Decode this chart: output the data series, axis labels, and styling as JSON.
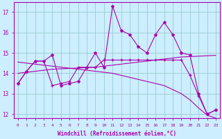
{
  "xlabel": "Windchill (Refroidissement éolien,°C)",
  "bg_color": "#cceeff",
  "line_color": "#aa00aa",
  "grid_color": "#99cccc",
  "x_hours": [
    0,
    1,
    2,
    3,
    4,
    5,
    6,
    7,
    8,
    9,
    10,
    11,
    12,
    13,
    14,
    15,
    16,
    17,
    18,
    19,
    20,
    21,
    22,
    23
  ],
  "series1": [
    13.5,
    14.1,
    14.6,
    14.6,
    14.9,
    13.4,
    13.5,
    13.6,
    14.3,
    15.0,
    14.3,
    17.3,
    16.1,
    15.9,
    15.3,
    15.0,
    15.9,
    16.5,
    15.9,
    15.0,
    14.9,
    13.0,
    12.0,
    12.2
  ],
  "series2": [
    13.5,
    14.1,
    14.6,
    14.6,
    13.4,
    13.5,
    13.6,
    14.3,
    14.3,
    14.3,
    14.65,
    14.65,
    14.65,
    14.65,
    14.65,
    14.65,
    14.65,
    14.65,
    14.65,
    14.65,
    13.9,
    12.9,
    12.0,
    12.2
  ],
  "series3": [
    14.0,
    14.05,
    14.1,
    14.15,
    14.2,
    14.22,
    14.24,
    14.26,
    14.28,
    14.3,
    14.35,
    14.4,
    14.45,
    14.5,
    14.55,
    14.6,
    14.65,
    14.7,
    14.75,
    14.8,
    14.82,
    14.84,
    14.86,
    14.88
  ],
  "series4": [
    14.55,
    14.5,
    14.45,
    14.4,
    14.35,
    14.3,
    14.25,
    14.2,
    14.15,
    14.1,
    14.05,
    14.0,
    13.9,
    13.8,
    13.7,
    13.6,
    13.5,
    13.4,
    13.2,
    13.0,
    12.7,
    12.3,
    11.95,
    11.8
  ],
  "ylim": [
    11.8,
    17.5
  ],
  "yticks": [
    12,
    13,
    14,
    15,
    16,
    17
  ],
  "figsize": [
    3.2,
    2.0
  ],
  "dpi": 100
}
